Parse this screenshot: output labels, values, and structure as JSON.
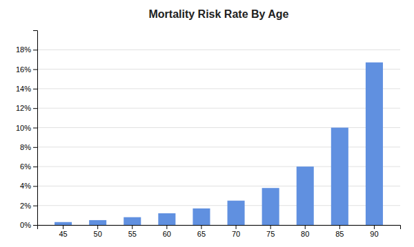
{
  "chart_data": {
    "type": "bar",
    "title": "Mortality Risk Rate By Age",
    "categories": [
      45,
      50,
      55,
      60,
      65,
      70,
      75,
      80,
      85,
      90
    ],
    "values": [
      0.003,
      0.005,
      0.008,
      0.012,
      0.017,
      0.025,
      0.038,
      0.06,
      0.1,
      0.167
    ],
    "color": "#6090E0",
    "ylim": [
      0,
      0.2
    ],
    "yticks": [
      {
        "value": 0,
        "label": "0%"
      },
      {
        "value": 0.02,
        "label": "2%"
      },
      {
        "value": 0.04,
        "label": "4%"
      },
      {
        "value": 0.06,
        "label": "6%"
      },
      {
        "value": 0.08,
        "label": "8%"
      },
      {
        "value": 0.1,
        "label": "10%"
      },
      {
        "value": 0.12,
        "label": "12%"
      },
      {
        "value": 0.14,
        "label": "14%"
      },
      {
        "value": 0.16,
        "label": "16%"
      },
      {
        "value": 0.18,
        "label": "18%"
      }
    ],
    "grid": true
  }
}
